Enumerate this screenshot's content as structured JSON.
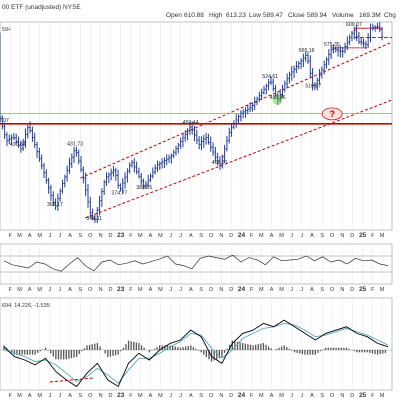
{
  "header": {
    "symbol_partial": "00 ETF (unadjusted) NYSE",
    "open_label": "Open",
    "open_value": "610.88",
    "high_label": "High",
    "high_value": "613.23",
    "low_label": "Low",
    "low_value": "589.47",
    "close_label": "Close",
    "close_value": "589.94",
    "volume_label": "Volume",
    "volume_value": "169.3M",
    "chg_label": "Chg",
    "price_badge": "594"
  },
  "chart_data": [
    {
      "type": "ohlc",
      "scale": "log",
      "ylim": [
        340,
        620
      ],
      "x_axis": {
        "type": "date",
        "range": [
          "2022-01-01",
          "2025-03-31"
        ],
        "tick_labels": [
          "F",
          "M",
          "A",
          "M",
          "J",
          "J",
          "A",
          "S",
          "O",
          "N",
          "D",
          "23",
          "F",
          "M",
          "A",
          "M",
          "J",
          "J",
          "A",
          "S",
          "O",
          "N",
          "D",
          "24",
          "F",
          "M",
          "A",
          "M",
          "J",
          "J",
          "A",
          "S",
          "O",
          "N",
          "D",
          "25",
          "F",
          "M",
          "A"
        ]
      },
      "close_path": [
        [
          "2022-01-01",
          470
        ],
        [
          "2022-01-20",
          440
        ],
        [
          "2022-02-10",
          445
        ],
        [
          "2022-03-05",
          430
        ],
        [
          "2022-03-28",
          460
        ],
        [
          "2022-04-20",
          430
        ],
        [
          "2022-05-15",
          400
        ],
        [
          "2022-06-16",
          362
        ],
        [
          "2022-07-10",
          390
        ],
        [
          "2022-08-16",
          431
        ],
        [
          "2022-09-10",
          395
        ],
        [
          "2022-09-30",
          358
        ],
        [
          "2022-10-13",
          348
        ],
        [
          "2022-11-15",
          395
        ],
        [
          "2022-12-13",
          405
        ],
        [
          "2022-12-28",
          380
        ],
        [
          "2023-02-02",
          415
        ],
        [
          "2023-03-13",
          385
        ],
        [
          "2023-04-20",
          410
        ],
        [
          "2023-06-01",
          420
        ],
        [
          "2023-07-31",
          459
        ],
        [
          "2023-08-25",
          435
        ],
        [
          "2023-09-15",
          445
        ],
        [
          "2023-10-27",
          409
        ],
        [
          "2023-11-28",
          455
        ],
        [
          "2023-12-29",
          476
        ],
        [
          "2024-01-31",
          485
        ],
        [
          "2024-03-28",
          524
        ],
        [
          "2024-04-19",
          494
        ],
        [
          "2024-05-21",
          530
        ],
        [
          "2024-07-16",
          565
        ],
        [
          "2024-08-05",
          511
        ],
        [
          "2024-09-30",
          575
        ],
        [
          "2024-10-31",
          568
        ],
        [
          "2024-12-06",
          607
        ],
        [
          "2024-12-20",
          586
        ],
        [
          "2025-01-13",
          580
        ],
        [
          "2025-01-24",
          609
        ],
        [
          "2025-02-19",
          612
        ],
        [
          "2025-03-01",
          594
        ]
      ],
      "price_labels": [
        {
          "text": "462.07",
          "date": "2022-01-04",
          "value": 462.07
        },
        {
          "text": "430.64",
          "date": "2022-02-24",
          "value": 430.64
        },
        {
          "text": "431.73",
          "date": "2022-08-16",
          "value": 431.73
        },
        {
          "text": "362.17",
          "date": "2022-06-16",
          "value": 362.17
        },
        {
          "text": "348.11",
          "date": "2022-10-13",
          "value": 348.11
        },
        {
          "text": "374.77",
          "date": "2022-12-28",
          "value": 374.77
        },
        {
          "text": "380.65",
          "date": "2023-03-13",
          "value": 380.65
        },
        {
          "text": "459.44",
          "date": "2023-07-31",
          "value": 459.44
        },
        {
          "text": "409.21",
          "date": "2023-10-27",
          "value": 409.21
        },
        {
          "text": "493.86",
          "date": "2024-04-19",
          "value": 493.86
        },
        {
          "text": "524.61",
          "date": "2024-03-28",
          "value": 524.61
        },
        {
          "text": "510.27",
          "date": "2024-08-05",
          "value": 510.27
        },
        {
          "text": "565.16",
          "date": "2024-07-16",
          "value": 565.16
        },
        {
          "text": "575.35",
          "date": "2024-09-30",
          "value": 575.35
        },
        {
          "text": "609.07",
          "date": "2024-12-06",
          "value": 609.07
        }
      ],
      "horizontal_lines": [
        {
          "value": 462.07,
          "start": "2021-12-15",
          "end": "2025-03-31",
          "color": "#cc0000"
        },
        {
          "value": 476,
          "start": "2021-12-15",
          "end": "2025-03-31",
          "color": "#e87878"
        },
        {
          "value": 609,
          "start": "2024-12-06",
          "end": "2025-02-28",
          "color": "#cc0000"
        },
        {
          "value": 593,
          "start": "2024-12-06",
          "end": "2025-03-31",
          "color": "#cc0000"
        },
        {
          "value": 575.35,
          "start": "2024-09-30",
          "end": "2025-01-15",
          "color": "#cc0000"
        }
      ],
      "trend_channel": {
        "color": "#cc0000",
        "upper": [
          [
            "2022-09-01",
            395
          ],
          [
            "2025-03-31",
            585
          ]
        ],
        "lower": [
          [
            "2022-09-15",
            352
          ],
          [
            "2025-03-31",
            495
          ]
        ]
      },
      "annotations": [
        {
          "text": "?",
          "date": "2024-09-01",
          "value": 470,
          "color": "#cc0000",
          "shape": "ellipse"
        },
        {
          "text": "",
          "date": "2024-04-19",
          "value": 495,
          "color": "#66cc44",
          "shape": "circle"
        }
      ]
    },
    {
      "type": "line",
      "name_hidden": "RSI",
      "ylim": [
        0,
        100
      ],
      "reference_lines": [
        30,
        70
      ],
      "values": [
        58,
        48,
        44,
        40,
        55,
        50,
        38,
        32,
        50,
        66,
        45,
        33,
        55,
        60,
        48,
        52,
        58,
        50,
        56,
        62,
        70,
        50,
        46,
        38,
        64,
        70,
        66,
        62,
        72,
        55,
        66,
        60,
        48,
        68,
        58,
        60,
        62,
        70,
        58,
        68,
        55,
        60,
        50,
        64,
        58,
        60,
        50,
        46
      ]
    },
    {
      "type": "line",
      "title_partial": "694, 14.226, -1.535",
      "series_colors": [
        "#000000",
        "#55aabb"
      ],
      "macd": [
        2,
        -4,
        -6,
        -9,
        -5,
        -13,
        -18,
        -22,
        -14,
        -8,
        -18,
        -22,
        -8,
        -2,
        -6,
        0,
        4,
        6,
        12,
        8,
        -4,
        -8,
        4,
        10,
        12,
        16,
        14,
        18,
        14,
        10,
        6,
        10,
        12,
        14,
        10,
        8,
        4,
        2
      ],
      "signal": [
        0,
        -2,
        -4,
        -7,
        -6,
        -9,
        -14,
        -19,
        -16,
        -11,
        -15,
        -20,
        -12,
        -5,
        -5,
        -2,
        2,
        5,
        10,
        9,
        1,
        -5,
        0,
        7,
        10,
        13,
        14,
        16,
        15,
        12,
        8,
        9,
        11,
        13,
        11,
        9,
        6,
        3
      ],
      "trend_marker": {
        "color": "#cc0000",
        "from": "2022-06-01",
        "to": "2022-10-10"
      }
    }
  ]
}
